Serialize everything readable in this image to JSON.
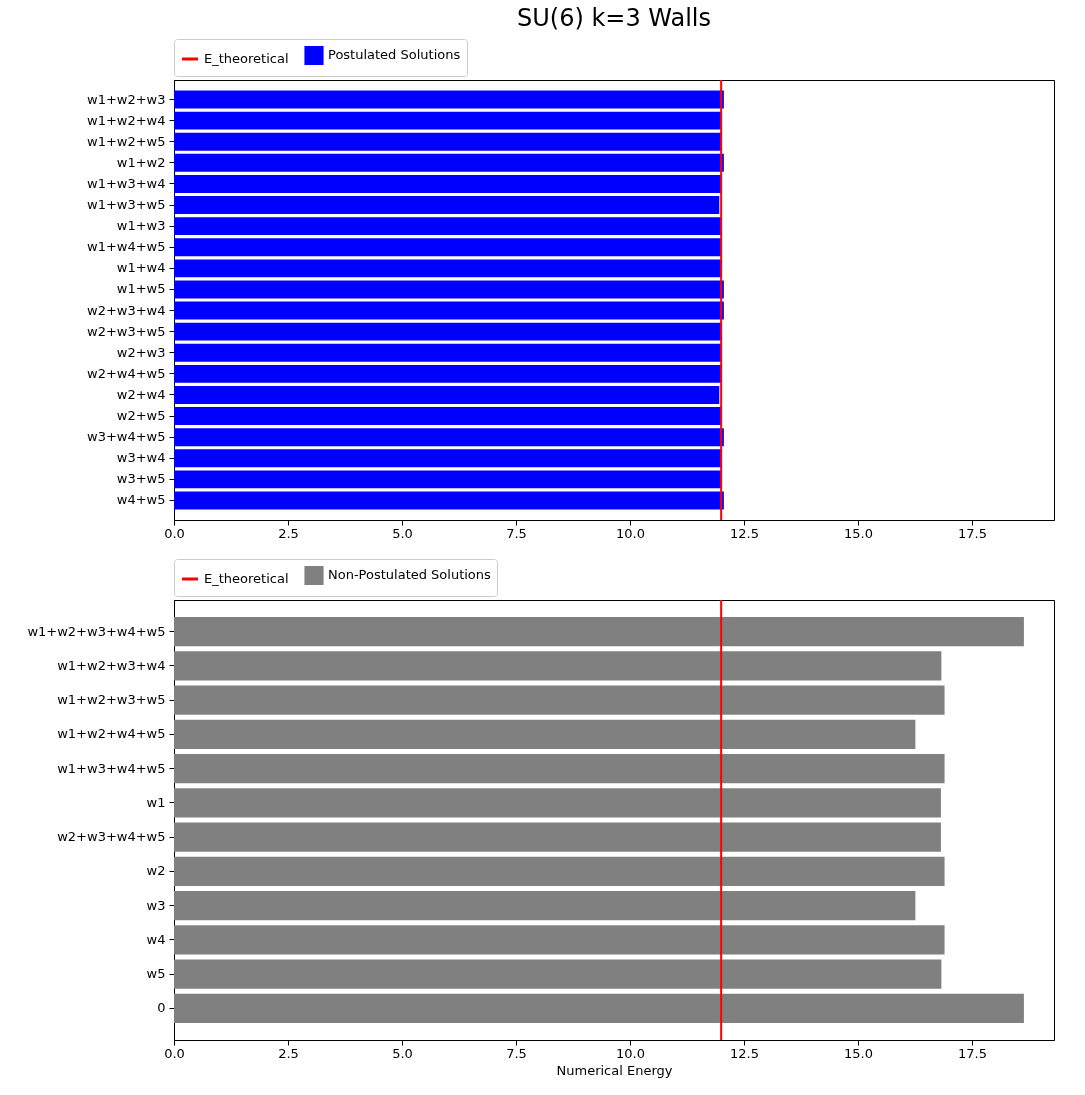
{
  "chart_data": [
    {
      "type": "bar",
      "orientation": "horizontal",
      "title": "SU(6) k=3 Walls",
      "categories": [
        "w1+w2+w3",
        "w1+w2+w4",
        "w1+w2+w5",
        "w1+w2",
        "w1+w3+w4",
        "w1+w3+w5",
        "w1+w3",
        "w1+w4+w5",
        "w1+w4",
        "w1+w5",
        "w2+w3+w4",
        "w2+w3+w5",
        "w2+w3",
        "w2+w4+w5",
        "w2+w4",
        "w2+w5",
        "w3+w4+w5",
        "w3+w4",
        "w3+w5",
        "w4+w5"
      ],
      "series": [
        {
          "name": "Postulated Solutions",
          "color": "#0000ff",
          "values": [
            12.06,
            12.0,
            12.0,
            12.06,
            12.0,
            11.96,
            12.0,
            12.0,
            12.0,
            12.06,
            12.06,
            12.0,
            12.0,
            12.0,
            11.96,
            12.0,
            12.06,
            12.0,
            12.0,
            12.06
          ]
        }
      ],
      "xlim": [
        0,
        19.3
      ],
      "xticks": [
        {
          "value": 0,
          "label": "0.0"
        },
        2.5,
        {
          "value": 5,
          "label": "5.0"
        },
        7.5,
        {
          "value": 10,
          "label": "10.0"
        },
        12.5,
        {
          "value": 15,
          "label": "15.0"
        },
        17.5
      ],
      "ref_lines": [
        {
          "axis": "x",
          "value": 12,
          "label": "E_theoretical",
          "color": "#ff0000"
        }
      ],
      "legend": "top"
    },
    {
      "type": "bar",
      "orientation": "horizontal",
      "xlabel": "Numerical Energy",
      "categories": [
        "w1+w2+w3+w4+w5",
        "w1+w2+w3+w4",
        "w1+w2+w3+w5",
        "w1+w2+w4+w5",
        "w1+w3+w4+w5",
        "w1",
        "w2+w3+w4+w5",
        "w2",
        "w3",
        "w4",
        "w5",
        "0"
      ],
      "series": [
        {
          "name": "Non-Postulated Solutions",
          "color": "#808080",
          "values": [
            18.64,
            16.83,
            16.9,
            16.26,
            16.9,
            16.82,
            16.82,
            16.9,
            16.26,
            16.9,
            16.83,
            18.64
          ]
        }
      ],
      "xlim": [
        0,
        19.3
      ],
      "xticks": [
        {
          "value": 0,
          "label": "0.0"
        },
        2.5,
        {
          "value": 5,
          "label": "5.0"
        },
        7.5,
        {
          "value": 10,
          "label": "10.0"
        },
        12.5,
        {
          "value": 15,
          "label": "15.0"
        },
        17.5
      ],
      "ref_lines": [
        {
          "axis": "x",
          "value": 12,
          "label": "E_theoretical",
          "color": "#ff0000"
        }
      ],
      "legend": "top"
    }
  ]
}
